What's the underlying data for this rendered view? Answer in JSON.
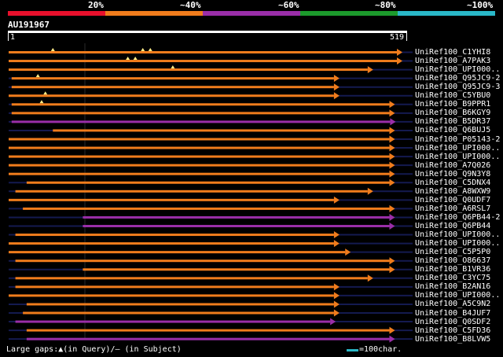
{
  "legend": {
    "items": [
      {
        "label": "20%",
        "color": "#e8102c"
      },
      {
        "label": "~40%",
        "color": "#f07c1c"
      },
      {
        "label": "~60%",
        "color": "#9a2ea8"
      },
      {
        "label": "~80%",
        "color": "#1c9a2c"
      },
      {
        "label": "~100%",
        "color": "#2ab8c8"
      }
    ]
  },
  "query": {
    "id": "AU191967",
    "start": "1",
    "end": "519",
    "length": 519
  },
  "colors": {
    "orange": "#f07c1c",
    "purple": "#9a2ea8",
    "navy": "#141a50",
    "marker": "#ffee88"
  },
  "hits": [
    {
      "name": "UniRef100_C1YHI8",
      "color": "orange",
      "start": 1,
      "end": 519,
      "gaps": [
        60,
        180,
        190
      ]
    },
    {
      "name": "UniRef100_A7PAK3",
      "color": "orange",
      "start": 1,
      "end": 519,
      "gaps": [
        160,
        170
      ]
    },
    {
      "name": "UniRef100_UPI000..",
      "color": "orange",
      "start": 1,
      "end": 480,
      "gaps": [
        220
      ]
    },
    {
      "name": "UniRef100_Q95JC9-2",
      "color": "orange",
      "start": 5,
      "end": 435,
      "gaps": [
        40
      ]
    },
    {
      "name": "UniRef100_Q95JC9-3",
      "color": "orange",
      "start": 5,
      "end": 435,
      "gaps": []
    },
    {
      "name": "UniRef100_C5YBU0",
      "color": "orange",
      "start": 1,
      "end": 435,
      "gaps": [
        50
      ]
    },
    {
      "name": "UniRef100_B9PPR1",
      "color": "orange",
      "start": 5,
      "end": 509,
      "gaps": [
        45
      ]
    },
    {
      "name": "UniRef100_B6KGY9",
      "color": "orange",
      "start": 5,
      "end": 509,
      "gaps": []
    },
    {
      "name": "UniRef100_B5DR37",
      "color": "purple",
      "start": 5,
      "end": 510,
      "gaps": []
    },
    {
      "name": "UniRef100_Q6BUJ5",
      "color": "orange",
      "start": 60,
      "end": 509,
      "gaps": []
    },
    {
      "name": "UniRef100_P05143-2",
      "color": "orange",
      "start": 1,
      "end": 509,
      "gaps": []
    },
    {
      "name": "UniRef100_UPI000..",
      "color": "orange",
      "start": 1,
      "end": 509,
      "gaps": []
    },
    {
      "name": "UniRef100_UPI000..",
      "color": "orange",
      "start": 1,
      "end": 509,
      "gaps": []
    },
    {
      "name": "UniRef100_A7Q026",
      "color": "orange",
      "start": 1,
      "end": 509,
      "gaps": []
    },
    {
      "name": "UniRef100_Q9N3Y8",
      "color": "orange",
      "start": 1,
      "end": 509,
      "gaps": []
    },
    {
      "name": "UniRef100_C5DNX4",
      "color": "orange",
      "start": 25,
      "end": 509,
      "gaps": []
    },
    {
      "name": "UniRef100_A8WXW9",
      "color": "orange",
      "start": 10,
      "end": 480,
      "gaps": []
    },
    {
      "name": "UniRef100_Q0UDF7",
      "color": "orange",
      "start": 1,
      "end": 435,
      "gaps": []
    },
    {
      "name": "UniRef100_A6RSL7",
      "color": "orange",
      "start": 20,
      "end": 509,
      "gaps": []
    },
    {
      "name": "UniRef100_Q6PB44-2",
      "color": "purple",
      "start": 100,
      "end": 509,
      "gaps": []
    },
    {
      "name": "UniRef100_Q6PB44",
      "color": "purple",
      "start": 100,
      "end": 509,
      "gaps": []
    },
    {
      "name": "UniRef100_UPI000..",
      "color": "orange",
      "start": 10,
      "end": 435,
      "gaps": []
    },
    {
      "name": "UniRef100_UPI000..",
      "color": "orange",
      "start": 1,
      "end": 435,
      "gaps": []
    },
    {
      "name": "UniRef100_C5P5P0",
      "color": "orange",
      "start": 1,
      "end": 450,
      "gaps": []
    },
    {
      "name": "UniRef100_O86637",
      "color": "orange",
      "start": 10,
      "end": 509,
      "gaps": []
    },
    {
      "name": "UniRef100_B1VR36",
      "color": "orange",
      "start": 100,
      "end": 509,
      "gaps": []
    },
    {
      "name": "UniRef100_C3YC75",
      "color": "orange",
      "start": 10,
      "end": 480,
      "gaps": []
    },
    {
      "name": "UniRef100_B2AN16",
      "color": "orange",
      "start": 10,
      "end": 435,
      "gaps": []
    },
    {
      "name": "UniRef100_UPI000..",
      "color": "orange",
      "start": 1,
      "end": 435,
      "gaps": []
    },
    {
      "name": "UniRef100_A5C9N2",
      "color": "orange",
      "start": 25,
      "end": 435,
      "gaps": []
    },
    {
      "name": "UniRef100_B4JUF7",
      "color": "orange",
      "start": 20,
      "end": 435,
      "gaps": []
    },
    {
      "name": "UniRef100_Q0SDF2",
      "color": "purple",
      "start": 10,
      "end": 430,
      "gaps": []
    },
    {
      "name": "UniRef100_C5FD36",
      "color": "orange",
      "start": 25,
      "end": 509,
      "gaps": []
    },
    {
      "name": "UniRef100_B8LVW5",
      "color": "purple",
      "start": 25,
      "end": 509,
      "gaps": []
    }
  ],
  "footer": {
    "text": "Large gaps:▲(in Query)/‒ (in Subject)",
    "scale_label": "=100char."
  }
}
